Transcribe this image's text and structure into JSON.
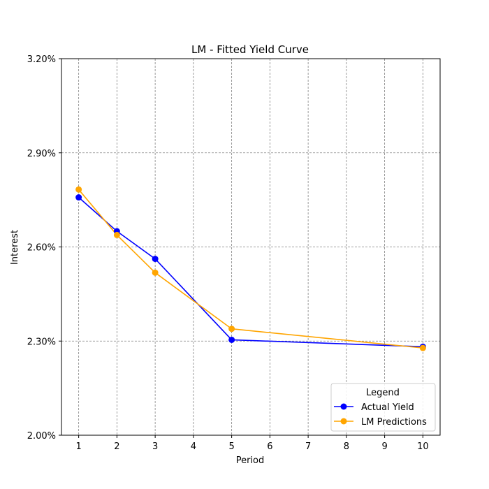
{
  "chart_data": {
    "type": "line",
    "title": "LM - Fitted Yield Curve",
    "xlabel": "Period",
    "ylabel": "Interest",
    "x_ticks": [
      "1",
      "2",
      "3",
      "4",
      "5",
      "6",
      "7",
      "8",
      "9",
      "10"
    ],
    "y_ticks": [
      "2.00%",
      "2.30%",
      "2.60%",
      "2.90%",
      "3.20%"
    ],
    "xlim": [
      0.55,
      10.45
    ],
    "ylim": [
      2.0,
      3.2
    ],
    "grid": true,
    "legend": {
      "title": "Legend",
      "placement": "lower-right"
    },
    "series": [
      {
        "name": "Actual Yield",
        "color": "#0000ff",
        "x": [
          1,
          2,
          3,
          5,
          10
        ],
        "y": [
          2.758,
          2.65,
          2.562,
          2.304,
          2.282
        ]
      },
      {
        "name": "LM Predictions",
        "color": "#ffa500",
        "x": [
          1,
          2,
          3,
          5,
          10
        ],
        "y": [
          2.783,
          2.638,
          2.518,
          2.339,
          2.278
        ]
      }
    ]
  }
}
